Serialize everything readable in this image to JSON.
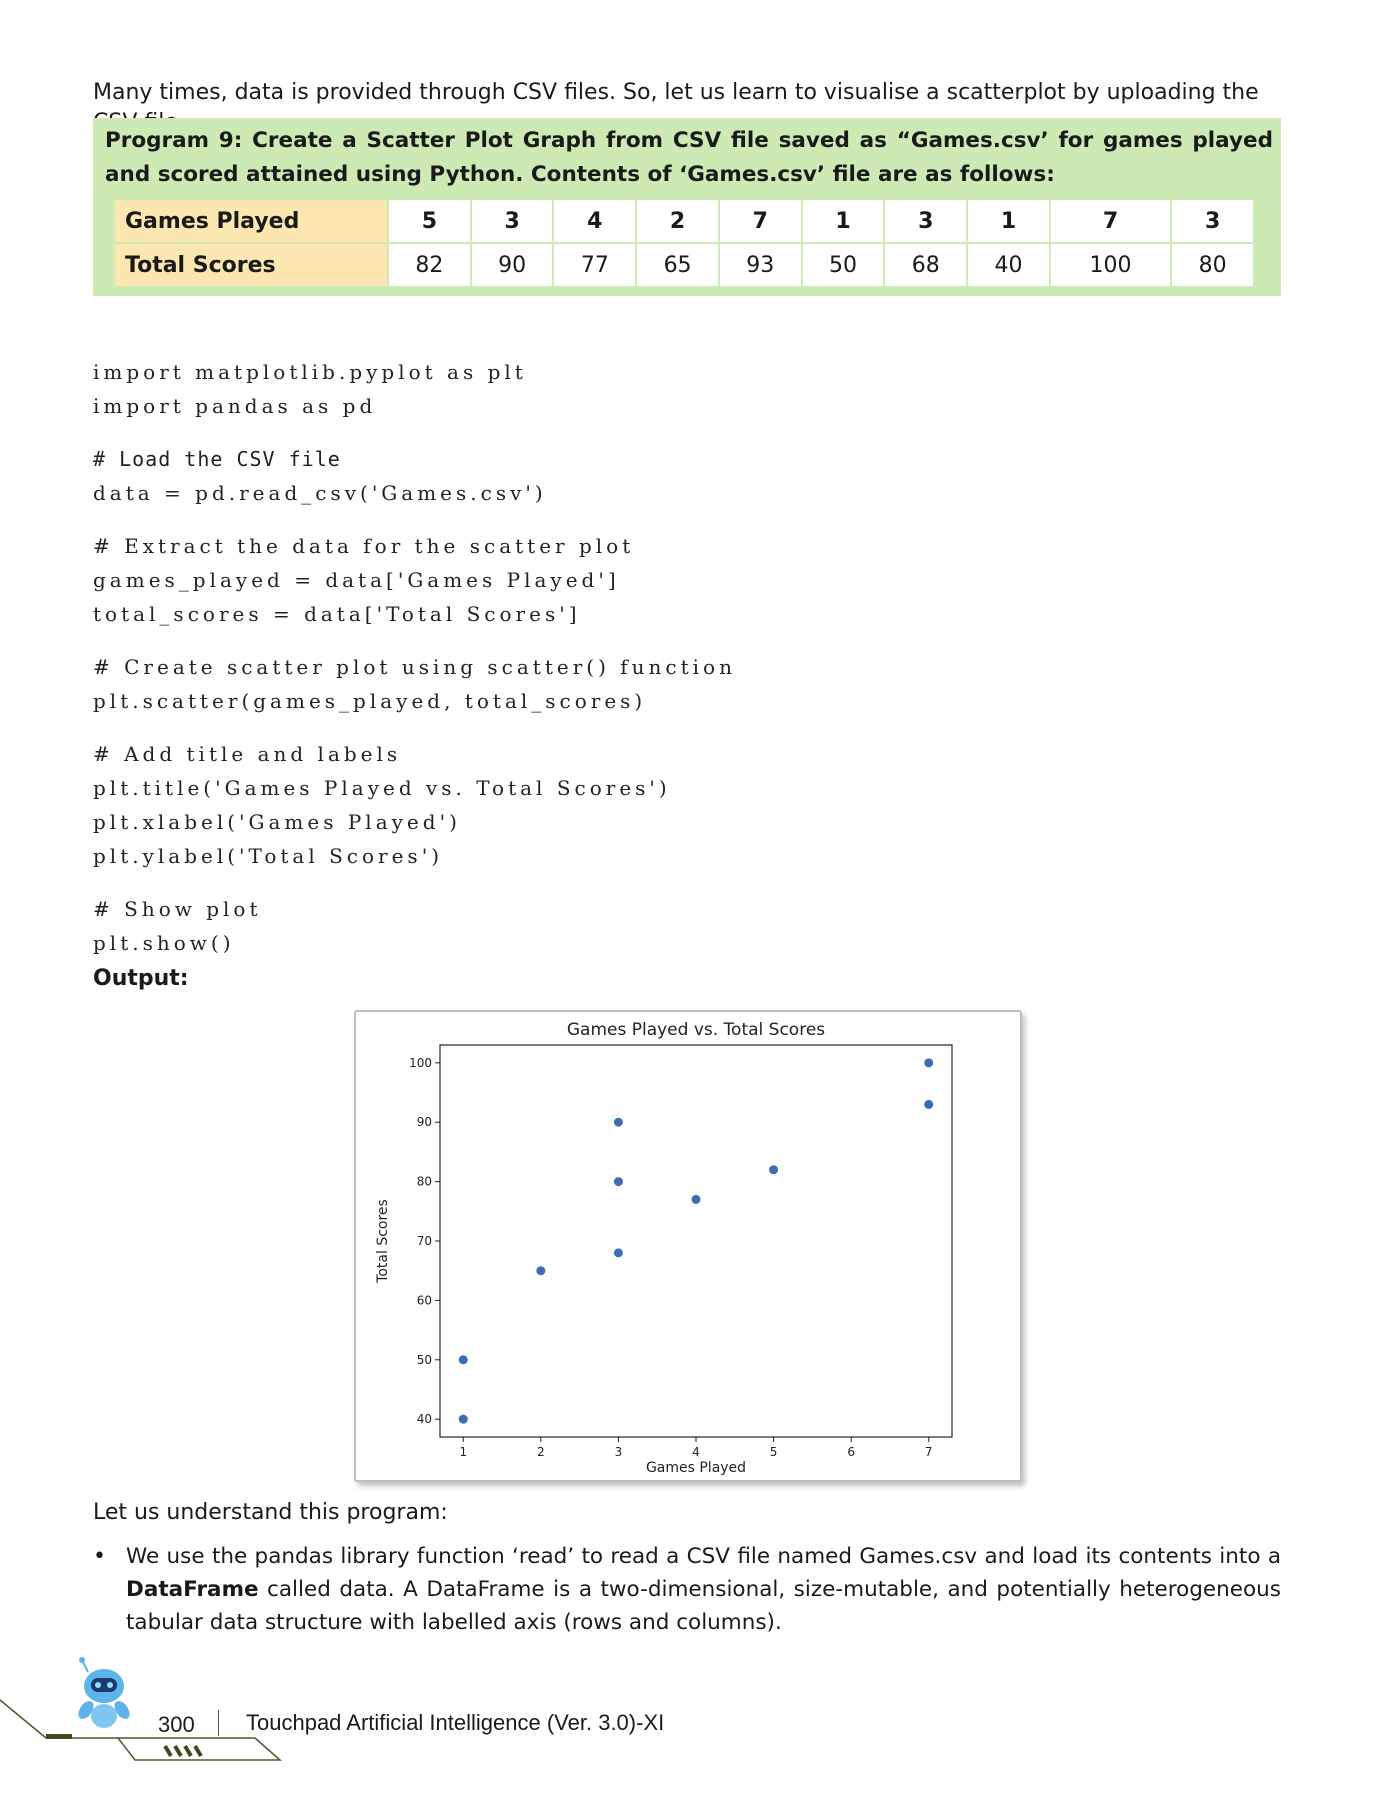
{
  "intro_text": "Many times, data is provided through CSV files. So, let us learn to visualise a scatterplot by uploading the CSV file.",
  "program": {
    "title": "Program 9: Create a Scatter Plot Graph from CSV file saved as “Games.csv’ for games played and scored attained using Python. Contents of ‘Games.csv’ file are as follows:",
    "table": {
      "rows": [
        {
          "label": "Games Played",
          "values": [
            "5",
            "3",
            "4",
            "2",
            "7",
            "1",
            "3",
            "1",
            "7",
            "3"
          ]
        },
        {
          "label": "Total Scores",
          "values": [
            "82",
            "90",
            "77",
            "65",
            "93",
            "50",
            "68",
            "40",
            "100",
            "80"
          ]
        }
      ]
    }
  },
  "code": {
    "l1": "import matplotlib.pyplot as plt",
    "l2": "import pandas as pd",
    "l3": "# Load the CSV file",
    "l4": "data = pd.read_csv('Games.csv')",
    "l5": "# Extract the data for the scatter plot",
    "l6": "games_played = data['Games Played']",
    "l7": "total_scores = data['Total Scores']",
    "l8": "# Create scatter plot using scatter() function",
    "l9": "plt.scatter(games_played, total_scores)",
    "l10": "# Add title and labels",
    "l11": "plt.title('Games Played vs. Total Scores')",
    "l12": "plt.xlabel('Games Played')",
    "l13": "plt.ylabel('Total Scores')",
    "l14": "# Show plot",
    "l15": "plt.show()"
  },
  "output_label": "Output:",
  "chart_data": {
    "type": "scatter",
    "title": "Games Played vs. Total Scores",
    "xlabel": "Games Played",
    "ylabel": "Total Scores",
    "x": [
      5,
      3,
      4,
      2,
      7,
      1,
      3,
      1,
      7,
      3
    ],
    "y": [
      82,
      90,
      77,
      65,
      93,
      50,
      68,
      40,
      100,
      80
    ],
    "xticks": [
      "1",
      "2",
      "3",
      "4",
      "5",
      "6",
      "7"
    ],
    "yticks": [
      "40",
      "50",
      "60",
      "70",
      "80",
      "90",
      "100"
    ],
    "xlim": [
      0.7,
      7.3
    ],
    "ylim": [
      37,
      103
    ],
    "marker_color": "#3c6db4",
    "grid": false
  },
  "explanation": {
    "heading": "Let us understand this program:",
    "bullet_pre": "We use the pandas library function ‘read’ to read a CSV file named Games.csv and load its contents into a ",
    "bullet_bold": "DataFrame",
    "bullet_post": " called data. A DataFrame is a two-dimensional, size-mutable, and potentially heterogeneous tabular data structure with labelled axis (rows and columns)."
  },
  "footer": {
    "page_number": "300",
    "book_title": "Touchpad Artificial Intelligence (Ver. 3.0)-XI"
  }
}
